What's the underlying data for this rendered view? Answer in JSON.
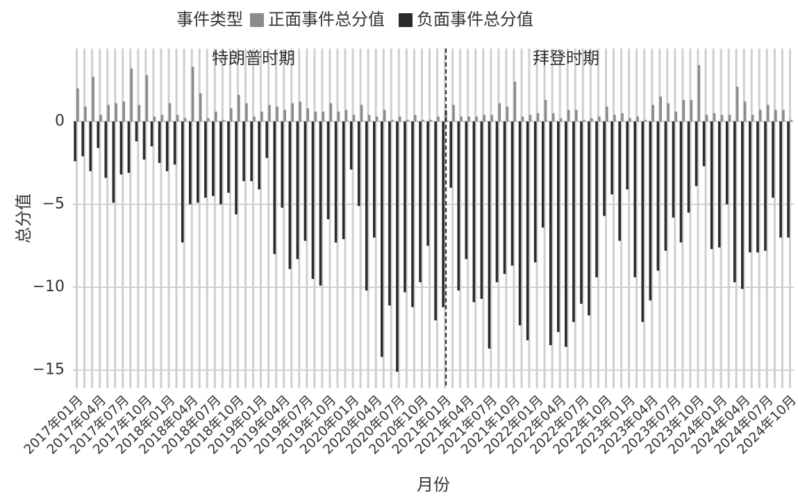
{
  "chart_data": {
    "type": "bar",
    "legend_title": "事件类型",
    "y_label": "总分值",
    "x_label": "月份",
    "annotations": [
      "特朗普时期",
      "拜登时期"
    ],
    "categories": [
      "2017年01月",
      null,
      null,
      "2017年04月",
      null,
      null,
      "2017年07月",
      null,
      null,
      "2017年10月",
      null,
      null,
      "2018年01月",
      null,
      null,
      "2018年04月",
      null,
      null,
      "2018年07月",
      null,
      null,
      "2018年10月",
      null,
      null,
      "2019年01月",
      null,
      null,
      "2019年04月",
      null,
      null,
      "2019年07月",
      null,
      null,
      "2019年10月",
      null,
      null,
      "2020年01月",
      null,
      null,
      "2020年04月",
      null,
      null,
      "2020年07月",
      null,
      null,
      "2020年10月",
      null,
      null,
      "2021年01月",
      null,
      null,
      "2021年04月",
      null,
      null,
      "2021年07月",
      null,
      null,
      "2021年10月",
      null,
      null,
      "2022年01月",
      null,
      null,
      "2022年04月",
      null,
      null,
      "2022年07月",
      null,
      null,
      "2022年10月",
      null,
      null,
      "2023年01月",
      null,
      null,
      "2023年04月",
      null,
      null,
      "2023年07月",
      null,
      null,
      "2023年10月",
      null,
      null,
      "2024年01月",
      null,
      null,
      "2024年04月",
      null,
      null,
      "2024年07月",
      null,
      null,
      "2024年10月"
    ],
    "series": [
      {
        "name": "负面事件总分值",
        "color": "#2b2b2b",
        "values": [
          -2.4,
          -2.1,
          -3.0,
          -1.6,
          -3.4,
          -4.9,
          -3.2,
          -3.1,
          -1.2,
          -2.3,
          -1.5,
          -2.5,
          -3.0,
          -2.6,
          -7.3,
          -5.0,
          -4.9,
          -4.6,
          -4.5,
          -5.0,
          -4.3,
          -5.6,
          -3.6,
          -3.6,
          -4.1,
          -2.2,
          -8.0,
          -5.2,
          -8.9,
          -8.3,
          -7.2,
          -9.5,
          -9.9,
          -5.9,
          -7.3,
          -7.1,
          -2.9,
          -5.1,
          -10.2,
          -7.0,
          -14.2,
          -11.1,
          -15.1,
          -10.3,
          -11.2,
          -9.7,
          -7.5,
          -12.0,
          -11.2,
          -4.0,
          -10.2,
          -8.3,
          -10.9,
          -10.7,
          -13.7,
          -9.7,
          -9.2,
          -8.7,
          -12.3,
          -13.2,
          -8.5,
          -6.4,
          -13.5,
          -12.7,
          -13.6,
          -12.1,
          -11.0,
          -11.7,
          -9.4,
          -5.7,
          -4.4,
          -7.2,
          -4.1,
          -9.4,
          -12.1,
          -10.8,
          -9.0,
          -7.8,
          -5.8,
          -7.3,
          -5.5,
          -3.9,
          -2.7,
          -7.7,
          -7.6,
          -5.0,
          -9.7,
          -10.1,
          -7.9,
          -7.9,
          -7.8,
          -4.6,
          -7.0,
          -7.0
        ]
      },
      {
        "name": "正面事件总分值",
        "color": "#8c8c8c",
        "values": [
          2.0,
          0.9,
          2.7,
          0.4,
          1.0,
          1.1,
          1.2,
          3.2,
          1.0,
          2.8,
          0.3,
          0.4,
          1.1,
          0.4,
          0.2,
          3.3,
          1.7,
          0.2,
          0.6,
          0.1,
          0.8,
          1.6,
          1.1,
          0.3,
          0.6,
          1.0,
          0.9,
          0.7,
          1.1,
          1.2,
          0.8,
          0.6,
          0.6,
          1.1,
          0.6,
          0.7,
          0.4,
          1.0,
          0.4,
          0.3,
          0.7,
          0.1,
          0.3,
          0.1,
          0.4,
          0.1,
          0.1,
          0.3,
          0.7,
          1.0,
          0.3,
          0.3,
          0.3,
          0.4,
          0.4,
          1.1,
          0.9,
          2.4,
          0.3,
          0.4,
          0.5,
          1.3,
          0.5,
          0.2,
          0.7,
          0.7,
          0.1,
          0.2,
          0.3,
          0.9,
          0.4,
          0.5,
          0.2,
          0.3,
          0.1,
          1.0,
          1.5,
          1.1,
          0.6,
          1.3,
          1.3,
          3.4,
          0.4,
          0.5,
          0.4,
          0.4,
          2.1,
          1.2,
          0.4,
          0.7,
          1.0,
          0.7,
          0.7,
          0.1
        ]
      }
    ],
    "ylim": [
      -16.1,
      4.4
    ],
    "yticks": [
      {
        "value": -15,
        "label": "−15"
      },
      {
        "value": -10,
        "label": "−10"
      },
      {
        "value": -5,
        "label": "−5"
      },
      0
    ],
    "grid": true
  }
}
